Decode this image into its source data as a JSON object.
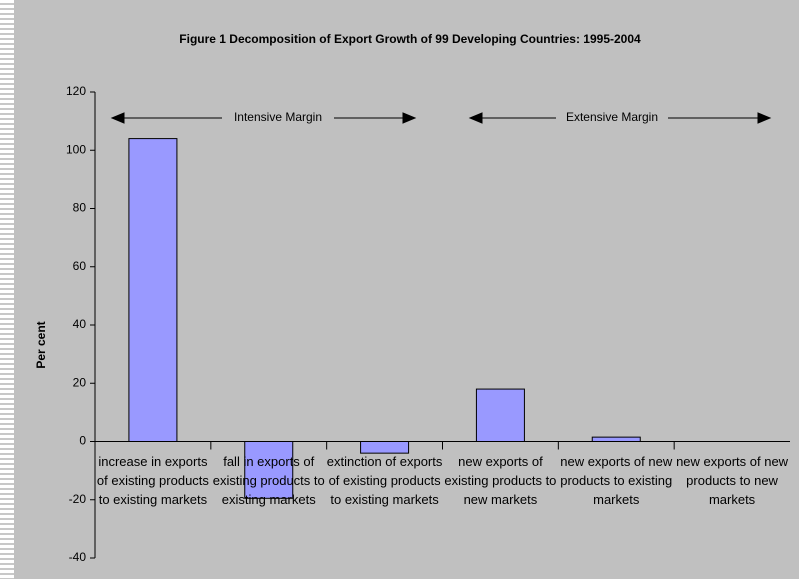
{
  "chart_data": {
    "type": "bar",
    "title": "Figure 1 Decomposition of Export Growth of 99 Developing Countries: 1995-2004",
    "ylabel": "Per cent",
    "categories": [
      "increase in exports of existing products to existing markets",
      "fall in exports of existing products to existing markets",
      "extinction of exports of existing products to existing markets",
      "new exports of existing products to new markets",
      "new exports of new products to existing markets",
      "new exports of new products to new markets"
    ],
    "values": [
      104,
      -19.5,
      -4,
      18,
      1.5,
      0
    ],
    "color": "#9999ff",
    "ylim": [
      -40,
      120
    ],
    "yticks": [
      -40,
      -20,
      0,
      20,
      40,
      60,
      80,
      100,
      120
    ],
    "grid": false,
    "annotations": [
      "Intensive Margin",
      "Extensive Margin"
    ]
  }
}
